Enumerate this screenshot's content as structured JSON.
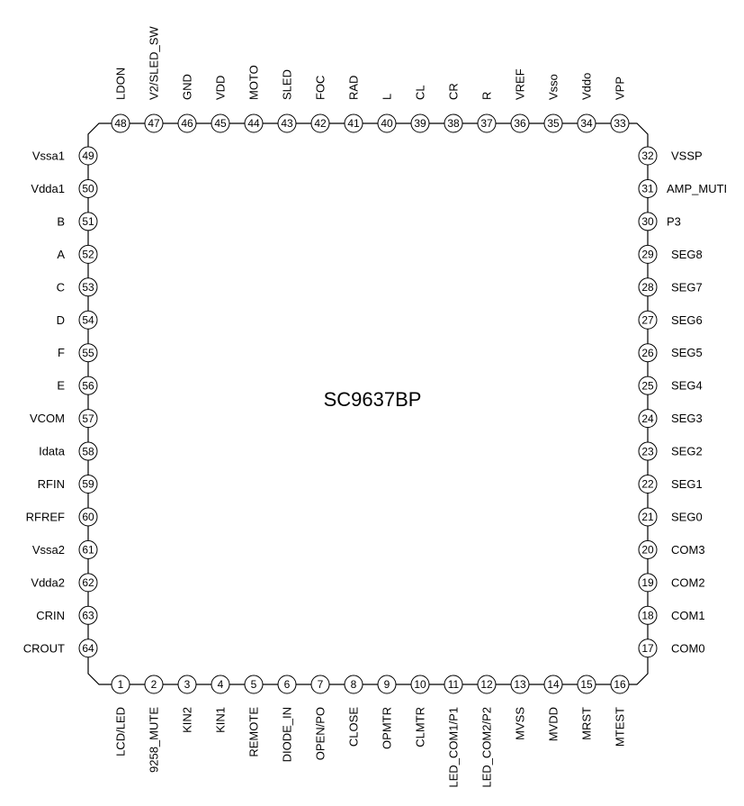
{
  "chip": {
    "name": "SC9637BP"
  },
  "pins": {
    "bottom": [
      {
        "num": "1",
        "label": "LCD/LED"
      },
      {
        "num": "2",
        "label": "9258_MUTE"
      },
      {
        "num": "3",
        "label": "KIN2"
      },
      {
        "num": "4",
        "label": "KIN1"
      },
      {
        "num": "5",
        "label": "REMOTE"
      },
      {
        "num": "6",
        "label": "DIODE_IN"
      },
      {
        "num": "7",
        "label": "OPEN/PO"
      },
      {
        "num": "8",
        "label": "CLOSE"
      },
      {
        "num": "9",
        "label": "OPMTR"
      },
      {
        "num": "10",
        "label": "CLMTR"
      },
      {
        "num": "11",
        "label": "LED_COM1/P1"
      },
      {
        "num": "12",
        "label": "LED_COM2/P2"
      },
      {
        "num": "13",
        "label": "MVSS"
      },
      {
        "num": "14",
        "label": "MVDD"
      },
      {
        "num": "15",
        "label": "MRST"
      },
      {
        "num": "16",
        "label": "MTEST"
      }
    ],
    "right": [
      {
        "num": "17",
        "label": "COM0"
      },
      {
        "num": "18",
        "label": "COM1"
      },
      {
        "num": "19",
        "label": "COM2"
      },
      {
        "num": "20",
        "label": "COM3"
      },
      {
        "num": "21",
        "label": "SEG0"
      },
      {
        "num": "22",
        "label": "SEG1"
      },
      {
        "num": "23",
        "label": "SEG2"
      },
      {
        "num": "24",
        "label": "SEG3"
      },
      {
        "num": "25",
        "label": "SEG4"
      },
      {
        "num": "26",
        "label": "SEG5"
      },
      {
        "num": "27",
        "label": "SEG6"
      },
      {
        "num": "28",
        "label": "SEG7"
      },
      {
        "num": "29",
        "label": "SEG8"
      },
      {
        "num": "30",
        "label": "P3"
      },
      {
        "num": "31",
        "label": "AMP_MUTI"
      },
      {
        "num": "32",
        "label": "VSSP"
      }
    ],
    "top": [
      {
        "num": "33",
        "label": "VPP"
      },
      {
        "num": "34",
        "label": "Vddo"
      },
      {
        "num": "35",
        "label": "Vsso"
      },
      {
        "num": "36",
        "label": "VREF"
      },
      {
        "num": "37",
        "label": "R"
      },
      {
        "num": "38",
        "label": "CR"
      },
      {
        "num": "39",
        "label": "CL"
      },
      {
        "num": "40",
        "label": "L"
      },
      {
        "num": "41",
        "label": "RAD"
      },
      {
        "num": "42",
        "label": "FOC"
      },
      {
        "num": "43",
        "label": "SLED"
      },
      {
        "num": "44",
        "label": "MOTO"
      },
      {
        "num": "45",
        "label": "VDD"
      },
      {
        "num": "46",
        "label": "GND"
      },
      {
        "num": "47",
        "label": "V2/SLED_SW"
      },
      {
        "num": "48",
        "label": "LDON"
      }
    ],
    "left": [
      {
        "num": "49",
        "label": "Vssa1"
      },
      {
        "num": "50",
        "label": "Vdda1"
      },
      {
        "num": "51",
        "label": "B"
      },
      {
        "num": "52",
        "label": "A"
      },
      {
        "num": "53",
        "label": "C"
      },
      {
        "num": "54",
        "label": "D"
      },
      {
        "num": "55",
        "label": "F"
      },
      {
        "num": "56",
        "label": "E"
      },
      {
        "num": "57",
        "label": "VCOM"
      },
      {
        "num": "58",
        "label": "Idata"
      },
      {
        "num": "59",
        "label": "RFIN"
      },
      {
        "num": "60",
        "label": "RFREF"
      },
      {
        "num": "61",
        "label": "Vssa2"
      },
      {
        "num": "62",
        "label": "Vdda2"
      },
      {
        "num": "63",
        "label": "CRIN"
      },
      {
        "num": "64",
        "label": "CROUT"
      }
    ]
  }
}
